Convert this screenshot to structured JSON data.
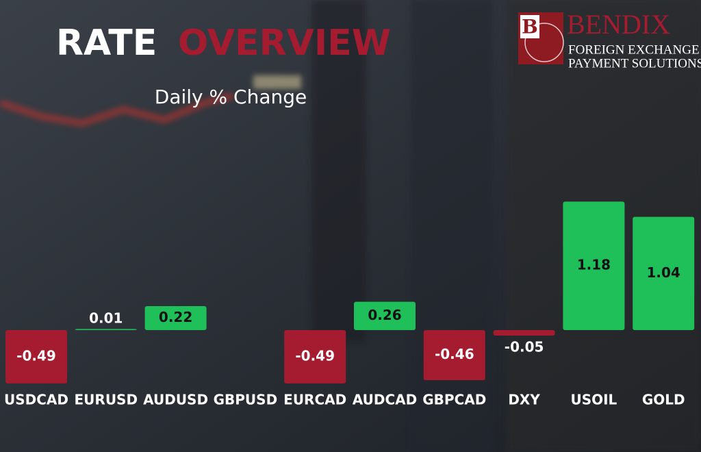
{
  "chart_data": {
    "type": "bar",
    "title": [
      "RATE",
      "OVERVIEW"
    ],
    "subtitle": "Daily % Change",
    "brand": {
      "mark": "B",
      "name": "BENDIX",
      "tagline": [
        "FOREIGN EXCHANGE &",
        "PAYMENT SOLUTIONS"
      ]
    },
    "categories": [
      "USDCAD",
      "EURUSD",
      "AUDUSD",
      "GBPUSD",
      "EURCAD",
      "AUDCAD",
      "GBPCAD",
      "DXY",
      "USOIL",
      "GOLD"
    ],
    "values": [
      -0.49,
      0.01,
      0.22,
      null,
      -0.49,
      0.26,
      -0.46,
      -0.05,
      1.18,
      1.04
    ],
    "positive_color": "#1fbf5a",
    "negative_color": "#a51c30"
  }
}
